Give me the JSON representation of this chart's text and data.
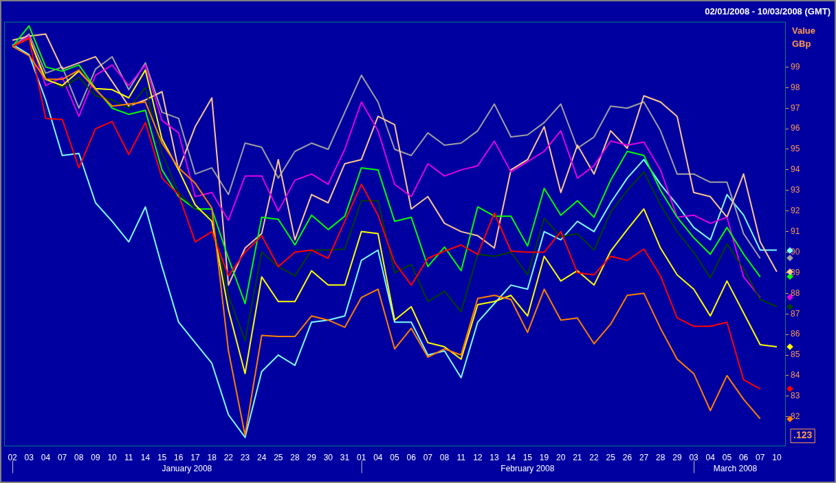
{
  "chart_data": {
    "type": "line",
    "title": "02/01/2008 - 10/03/2008 (GMT)",
    "ylabel": "Value\nGBp",
    "categories": [
      "02",
      "03",
      "04",
      "07",
      "08",
      "09",
      "10",
      "11",
      "14",
      "15",
      "16",
      "17",
      "18",
      "22",
      "23",
      "24",
      "25",
      "28",
      "29",
      "30",
      "31",
      "01",
      "04",
      "05",
      "06",
      "07",
      "08",
      "11",
      "12",
      "13",
      "14",
      "15",
      "19",
      "20",
      "21",
      "22",
      "25",
      "26",
      "27",
      "28",
      "29",
      "03",
      "04",
      "05",
      "06",
      "07",
      "10"
    ],
    "series": [
      {
        "color": "#ff8000",
        "values": [
          100,
          99.55,
          98.4,
          98.4,
          98.85,
          97.9,
          97.1,
          97.2,
          97.3,
          95.3,
          94.1,
          93.35,
          92.15,
          85.2,
          81.1,
          85.95,
          85.9,
          85.9,
          86.9,
          86.7,
          86.35,
          87.8,
          88.2,
          85.3,
          86.3,
          84.9,
          85.3,
          85.0,
          87.75,
          87.9,
          87.7,
          86.1,
          88.2,
          86.7,
          86.8,
          85.55,
          86.5,
          87.9,
          88.0,
          86.3,
          84.8,
          84.1,
          82.3,
          84.0,
          82.85,
          81.9,
          null
        ]
      },
      {
        "color": "#ff0000",
        "values": [
          100,
          100.4,
          96.5,
          96.45,
          94.1,
          96.0,
          96.35,
          94.75,
          96.3,
          93.6,
          92.8,
          90.5,
          91.0,
          88.85,
          90.0,
          90.8,
          89.3,
          90.0,
          90.1,
          89.7,
          91.5,
          93.3,
          91.8,
          89.5,
          88.4,
          89.7,
          90.05,
          90.35,
          89.9,
          91.9,
          90.05,
          90.0,
          90.0,
          91.0,
          89.0,
          88.9,
          89.8,
          89.6,
          90.15,
          88.85,
          86.8,
          86.4,
          86.4,
          86.6,
          83.8,
          83.35,
          null
        ]
      },
      {
        "color": "#ffff00",
        "values": [
          100,
          100.4,
          98.4,
          98.1,
          98.8,
          97.95,
          97.9,
          97.5,
          98.85,
          95.5,
          94.0,
          92.3,
          91.5,
          87.2,
          84.1,
          88.8,
          87.6,
          87.6,
          89.1,
          88.4,
          88.4,
          91.0,
          90.9,
          86.7,
          87.35,
          85.6,
          85.4,
          84.8,
          87.45,
          87.6,
          87.9,
          86.9,
          89.8,
          88.6,
          89.1,
          88.4,
          90.05,
          91.1,
          92.1,
          90.2,
          88.9,
          88.2,
          86.9,
          88.6,
          87.05,
          85.5,
          85.4
        ]
      },
      {
        "color": "#004000",
        "values": [
          100,
          100.4,
          98.5,
          98.0,
          98.5,
          97.6,
          97.4,
          97.0,
          98.0,
          94.8,
          92.9,
          92.1,
          91.7,
          87.9,
          85.7,
          90.0,
          89.3,
          88.85,
          90.1,
          90.1,
          90.15,
          92.5,
          92.5,
          89.0,
          89.4,
          87.6,
          88.1,
          87.1,
          89.9,
          89.8,
          90.0,
          88.9,
          91.65,
          90.75,
          90.9,
          90.1,
          91.95,
          93.0,
          93.9,
          92.3,
          91.0,
          90.0,
          88.75,
          90.4,
          89.2,
          87.7,
          87.35
        ]
      },
      {
        "color": "#00ff00",
        "values": [
          100,
          101.0,
          99.0,
          98.8,
          99.1,
          97.95,
          97.0,
          96.7,
          96.9,
          94.0,
          92.7,
          92.1,
          92.1,
          89.7,
          87.5,
          91.7,
          91.6,
          90.35,
          91.8,
          91.1,
          91.75,
          94.1,
          94.0,
          91.5,
          91.7,
          89.3,
          90.25,
          89.1,
          92.2,
          91.75,
          91.75,
          90.3,
          93.1,
          91.8,
          92.5,
          91.7,
          93.5,
          94.9,
          94.7,
          93.0,
          91.7,
          90.7,
          89.9,
          91.2,
          89.9,
          88.8,
          null
        ]
      },
      {
        "color": "#e000e0",
        "values": [
          100,
          100.5,
          98.1,
          98.5,
          96.6,
          98.6,
          99.1,
          98.1,
          99.1,
          96.4,
          95.8,
          92.7,
          92.9,
          91.55,
          93.7,
          93.7,
          92.0,
          93.5,
          93.8,
          93.3,
          95.0,
          97.3,
          95.9,
          93.3,
          92.7,
          94.3,
          93.7,
          94.0,
          94.2,
          95.4,
          93.9,
          94.4,
          94.9,
          95.9,
          93.6,
          94.2,
          95.4,
          95.2,
          95.35,
          94.0,
          91.7,
          91.8,
          91.4,
          91.7,
          88.8,
          87.8,
          null
        ]
      },
      {
        "color": "#ffc890",
        "values": [
          100.3,
          100.5,
          100.6,
          98.9,
          99.2,
          99.5,
          98.3,
          97.1,
          97.4,
          97.8,
          94.0,
          96.1,
          97.5,
          88.4,
          90.2,
          90.9,
          94.5,
          90.6,
          92.8,
          92.4,
          94.3,
          94.5,
          96.6,
          96.2,
          92.1,
          92.7,
          91.4,
          91.0,
          90.8,
          90.2,
          94.0,
          94.5,
          96.1,
          92.9,
          95.2,
          93.8,
          95.9,
          95.05,
          97.6,
          97.3,
          96.6,
          92.9,
          92.7,
          91.7,
          93.8,
          90.5,
          89.05
        ]
      },
      {
        "color": "#a0a0a0",
        "values": [
          100,
          100.6,
          98.7,
          99.0,
          97.0,
          98.9,
          99.5,
          97.9,
          99.2,
          96.8,
          96.5,
          93.8,
          94.1,
          92.8,
          95.3,
          95.1,
          93.6,
          94.9,
          95.3,
          95.0,
          96.8,
          98.6,
          97.3,
          95.0,
          94.7,
          95.8,
          95.2,
          95.3,
          95.9,
          97.2,
          95.6,
          95.7,
          96.3,
          97.2,
          95.05,
          95.6,
          97.1,
          97.0,
          97.3,
          95.9,
          93.8,
          93.8,
          93.4,
          93.4,
          90.9,
          89.7,
          null
        ]
      },
      {
        "color": "#80ffff",
        "values": [
          100.1,
          99.6,
          97.4,
          94.7,
          94.8,
          92.4,
          91.5,
          90.5,
          92.2,
          89.3,
          86.6,
          85.6,
          84.6,
          82.1,
          81.0,
          84.2,
          85.0,
          84.5,
          86.6,
          86.7,
          86.9,
          89.6,
          90.1,
          86.6,
          86.6,
          85.0,
          85.2,
          83.9,
          86.6,
          87.5,
          88.4,
          88.2,
          91.0,
          90.6,
          91.5,
          91.0,
          92.4,
          93.6,
          94.5,
          93.3,
          92.3,
          91.2,
          90.6,
          92.8,
          91.8,
          90.1,
          90.1
        ]
      }
    ],
    "ylim": [
      80.6,
      101.2
    ],
    "yticks": [
      82,
      83,
      84,
      85,
      86,
      87,
      88,
      89,
      90,
      91,
      92,
      93,
      94,
      95,
      96,
      97,
      98,
      99
    ],
    "grid": false,
    "legend": false,
    "marker": "none",
    "line_style": "solid",
    "annotations": [
      "January 2008",
      "February 2008",
      "March 2008",
      ".123"
    ]
  }
}
